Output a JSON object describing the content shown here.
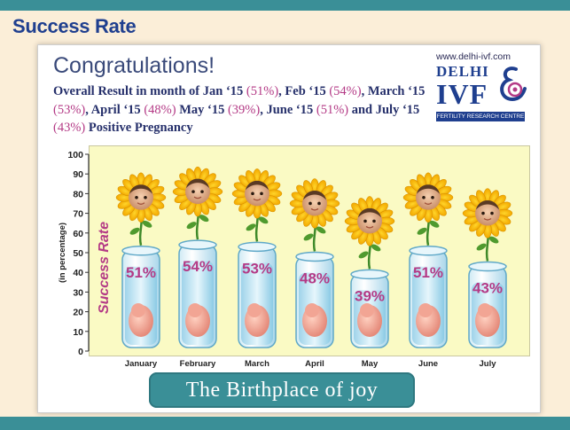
{
  "heading": "Success Rate",
  "congrats": "Congratulations!",
  "summary": [
    {
      "t": "Overall  Result in month of Jan ‘15 ",
      "p": false
    },
    {
      "t": "(51%)",
      "p": true
    },
    {
      "t": ", Feb ‘15 ",
      "p": false
    },
    {
      "t": "(54%)",
      "p": true
    },
    {
      "t": ", March ‘15 ",
      "p": false
    },
    {
      "t": "(53%)",
      "p": true
    },
    {
      "t": ", April ‘15 ",
      "p": false
    },
    {
      "t": "(48%)",
      "p": true
    },
    {
      "t": " May ‘15 ",
      "p": false
    },
    {
      "t": "(39%)",
      "p": true
    },
    {
      "t": ", June ‘15 ",
      "p": false
    },
    {
      "t": "(51%)",
      "p": true
    },
    {
      "t": " and July ‘15 ",
      "p": false
    },
    {
      "t": "(43%)",
      "p": true
    },
    {
      "t": " Positive Pregnancy",
      "p": false
    }
  ],
  "logo": {
    "url": "www.delhi-ivf.com",
    "name_top": "DELHI",
    "name_big": "IVF",
    "subtitle": "FERTILITY RESEARCH CENTRE"
  },
  "tagline": "The Birthplace of joy",
  "colors": {
    "brand_blue": "#1f3f8f",
    "accent_magenta": "#b43a86",
    "band_teal": "#3a8f97",
    "plot_bg": "#fafac4"
  },
  "chart_data": {
    "type": "bar",
    "categories": [
      "January",
      "February",
      "March",
      "April",
      "May",
      "June",
      "July"
    ],
    "values": [
      51,
      54,
      53,
      48,
      39,
      51,
      43
    ],
    "value_labels": [
      "51%",
      "54%",
      "53%",
      "48%",
      "39%",
      "51%",
      "43%"
    ],
    "ylabel": "(in percentage)",
    "series_label": "Success Rate",
    "ylim": [
      0,
      100
    ],
    "yticks": [
      0,
      10,
      20,
      30,
      40,
      50,
      60,
      70,
      80,
      90,
      100
    ],
    "grid": false,
    "mark_style": "test tubes topped with sunflowers with baby faces"
  }
}
